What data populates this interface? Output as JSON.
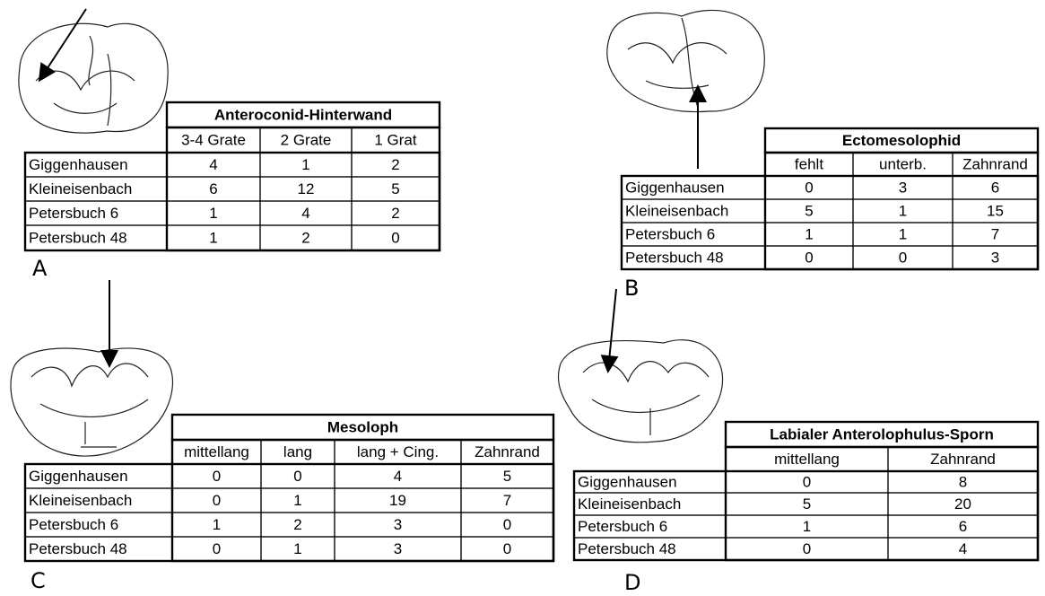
{
  "panels": [
    {
      "label": "A",
      "title": "Anteroconid-Hinterwand",
      "columns": [
        "3-4 Grate",
        "2 Grate",
        "1 Grat"
      ],
      "rows": [
        {
          "name": "Giggenhausen",
          "values": [
            4,
            1,
            2
          ]
        },
        {
          "name": "Kleineisenbach",
          "values": [
            6,
            12,
            5
          ]
        },
        {
          "name": "Petersbuch 6",
          "values": [
            1,
            4,
            2
          ]
        },
        {
          "name": "Petersbuch 48",
          "values": [
            1,
            2,
            0
          ]
        }
      ]
    },
    {
      "label": "B",
      "title": "Ectomesolophid",
      "columns": [
        "fehlt",
        "unterb.",
        "Zahnrand"
      ],
      "rows": [
        {
          "name": "Giggenhausen",
          "values": [
            0,
            3,
            6
          ]
        },
        {
          "name": "Kleineisenbach",
          "values": [
            5,
            1,
            15
          ]
        },
        {
          "name": "Petersbuch 6",
          "values": [
            1,
            1,
            7
          ]
        },
        {
          "name": "Petersbuch 48",
          "values": [
            0,
            0,
            3
          ]
        }
      ]
    },
    {
      "label": "C",
      "title": "Mesoloph",
      "columns": [
        "mittellang",
        "lang",
        "lang + Cing.",
        "Zahnrand"
      ],
      "rows": [
        {
          "name": "Giggenhausen",
          "values": [
            0,
            0,
            4,
            5
          ]
        },
        {
          "name": "Kleineisenbach",
          "values": [
            0,
            1,
            19,
            7
          ]
        },
        {
          "name": "Petersbuch 6",
          "values": [
            1,
            2,
            3,
            0
          ]
        },
        {
          "name": "Petersbuch 48",
          "values": [
            0,
            1,
            3,
            0
          ]
        }
      ]
    },
    {
      "label": "D",
      "title": "Labialer Anterolophulus-Sporn",
      "columns": [
        "mittellang",
        "Zahnrand"
      ],
      "rows": [
        {
          "name": "Giggenhausen",
          "values": [
            0,
            8
          ]
        },
        {
          "name": "Kleineisenbach",
          "values": [
            5,
            20
          ]
        },
        {
          "name": "Petersbuch 6",
          "values": [
            1,
            6
          ]
        },
        {
          "name": "Petersbuch 48",
          "values": [
            0,
            4
          ]
        }
      ]
    }
  ]
}
